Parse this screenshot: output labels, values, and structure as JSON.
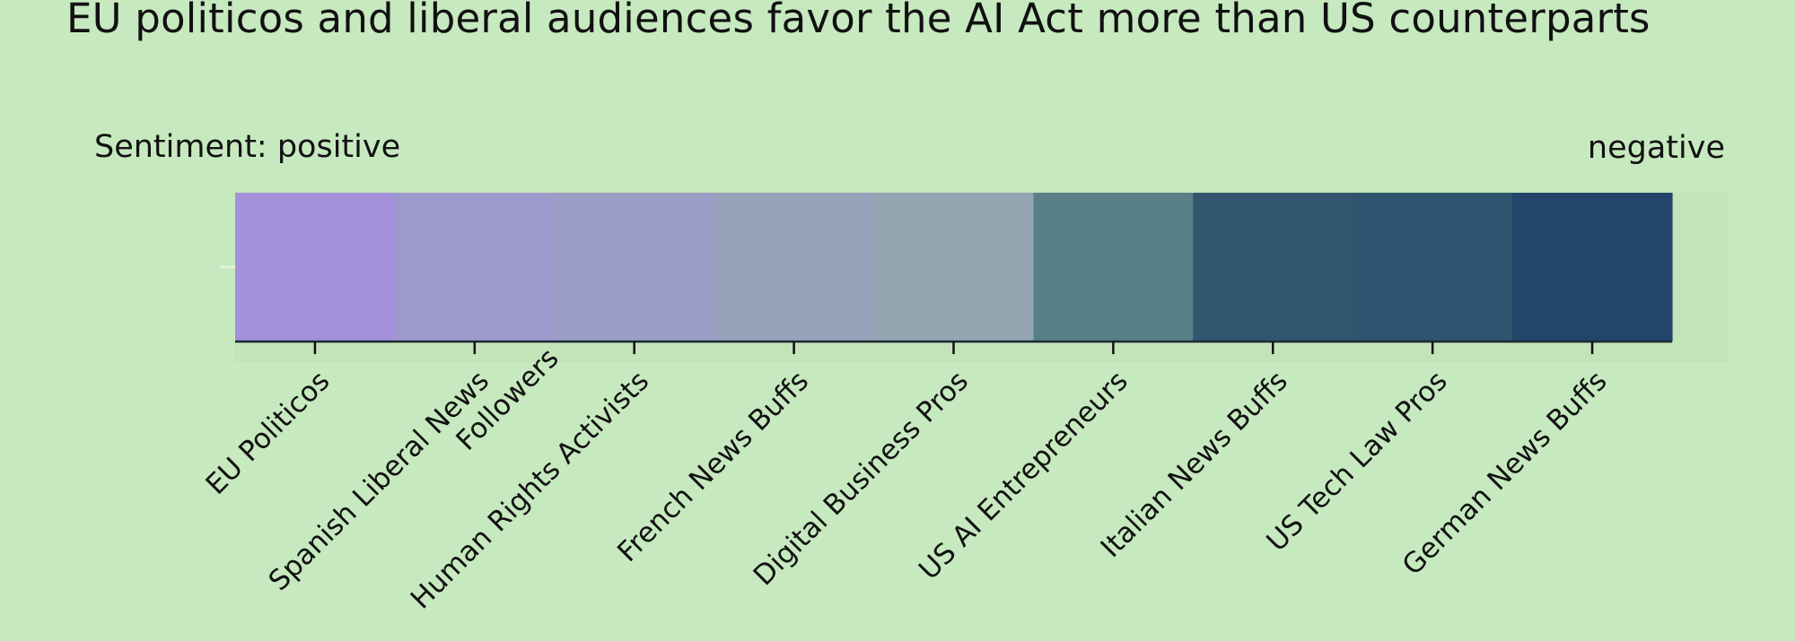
{
  "chart_data": {
    "type": "heatmap",
    "title": "EU politicos and liberal audiences favor the AI Act more than US counterparts",
    "legend": {
      "low_label": "Sentiment: positive",
      "high_label": "negative"
    },
    "categories": [
      "EU Politicos",
      "Spanish Liberal News Followers",
      "Human Rights Activists",
      "French News Buffs",
      "Digital Business Pros",
      "US AI Entrepreneurs",
      "Italian News Buffs",
      "US Tech Law Pros",
      "German News Buffs"
    ],
    "cell_colors": [
      "#a391d9",
      "#9d99cb",
      "#9b9fc5",
      "#98a2bb",
      "#94a6b1",
      "#597f87",
      "#32566f",
      "#2f546f",
      "#23456a"
    ],
    "grid": false
  }
}
